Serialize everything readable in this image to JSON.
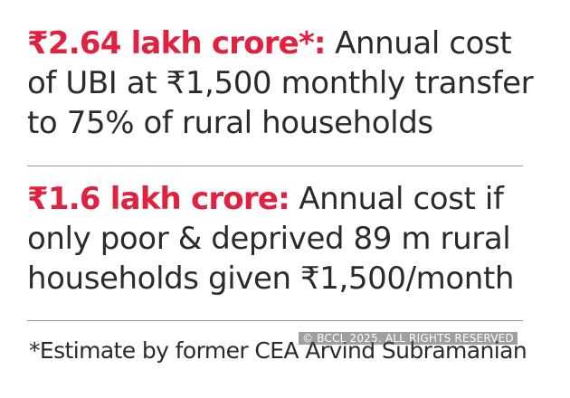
{
  "stat_1": {
    "highlight": "₹2.64 lakh crore*:",
    "line_1_rest": " Annual cost",
    "line_2": "of UBI at ₹1,500 monthly transfer",
    "line_3": "to 75% of rural households"
  },
  "stat_2": {
    "highlight": "₹1.6 lakh crore:",
    "line_1_rest": " Annual cost if",
    "line_2": "only poor & deprived 89 m rural",
    "line_3": "households given ₹1,500/month"
  },
  "footnote": "*Estimate by former CEA Arvind Subramanian",
  "watermark": "© BCCL 2025. ALL RIGHTS RESERVED",
  "colors": {
    "highlight": "#e0213f",
    "body_text": "#2b2b2b",
    "divider": "#9a9a9a"
  }
}
